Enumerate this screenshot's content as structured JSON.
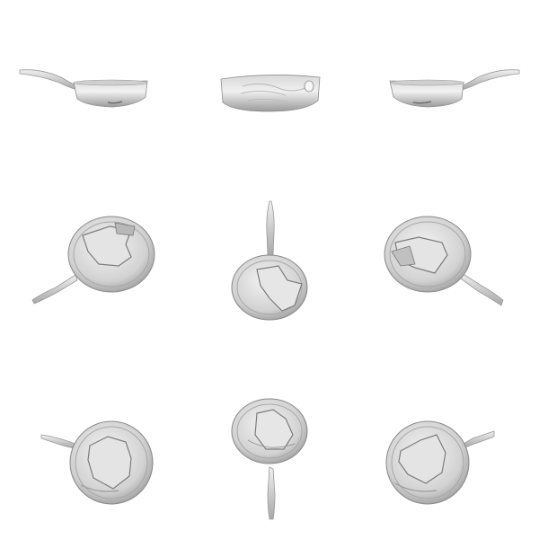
{
  "views": [
    {
      "view": "side-left",
      "handle_dir": "left"
    },
    {
      "view": "side-back",
      "handle_dir": "none"
    },
    {
      "view": "side-right",
      "handle_dir": "right"
    },
    {
      "view": "top-tilt-down-left",
      "handle_dir": "down-left"
    },
    {
      "view": "top-tilt-up",
      "handle_dir": "up"
    },
    {
      "view": "top-tilt-down-right",
      "handle_dir": "down-right"
    },
    {
      "view": "bottom-tilt-left",
      "handle_dir": "left"
    },
    {
      "view": "bottom-tilt-down",
      "handle_dir": "down"
    },
    {
      "view": "bottom-tilt-right",
      "handle_dir": "right"
    }
  ],
  "colors": {
    "background": "#ffffff",
    "pan_light": "#e8e8e8",
    "pan_mid": "#c4c4c4",
    "pan_dark": "#8a8a8a",
    "outline": "#9a9a9a"
  }
}
